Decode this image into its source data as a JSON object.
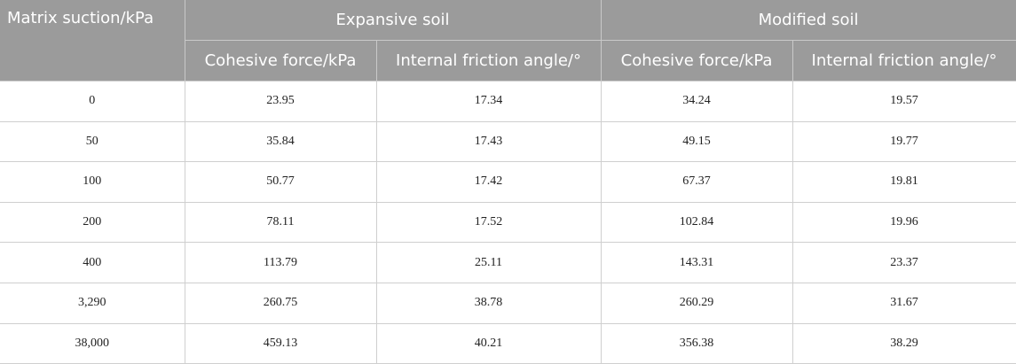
{
  "table": {
    "header": {
      "first": "Matrix suction/kPa",
      "groups": [
        "Expansive soil",
        "Modified soil"
      ],
      "sub": [
        "Cohesive force/kPa",
        "Internal friction angle/°",
        "Cohesive force/kPa",
        "Internal friction angle/°"
      ]
    },
    "rows": [
      [
        "0",
        "23.95",
        "17.34",
        "34.24",
        "19.57"
      ],
      [
        "50",
        "35.84",
        "17.43",
        "49.15",
        "19.77"
      ],
      [
        "100",
        "50.77",
        "17.42",
        "67.37",
        "19.81"
      ],
      [
        "200",
        "78.11",
        "17.52",
        "102.84",
        "19.96"
      ],
      [
        "400",
        "113.79",
        "25.11",
        "143.31",
        "23.37"
      ],
      [
        "3,290",
        "260.75",
        "38.78",
        "260.29",
        "31.67"
      ],
      [
        "38,000",
        "459.13",
        "40.21",
        "356.38",
        "38.29"
      ]
    ]
  }
}
